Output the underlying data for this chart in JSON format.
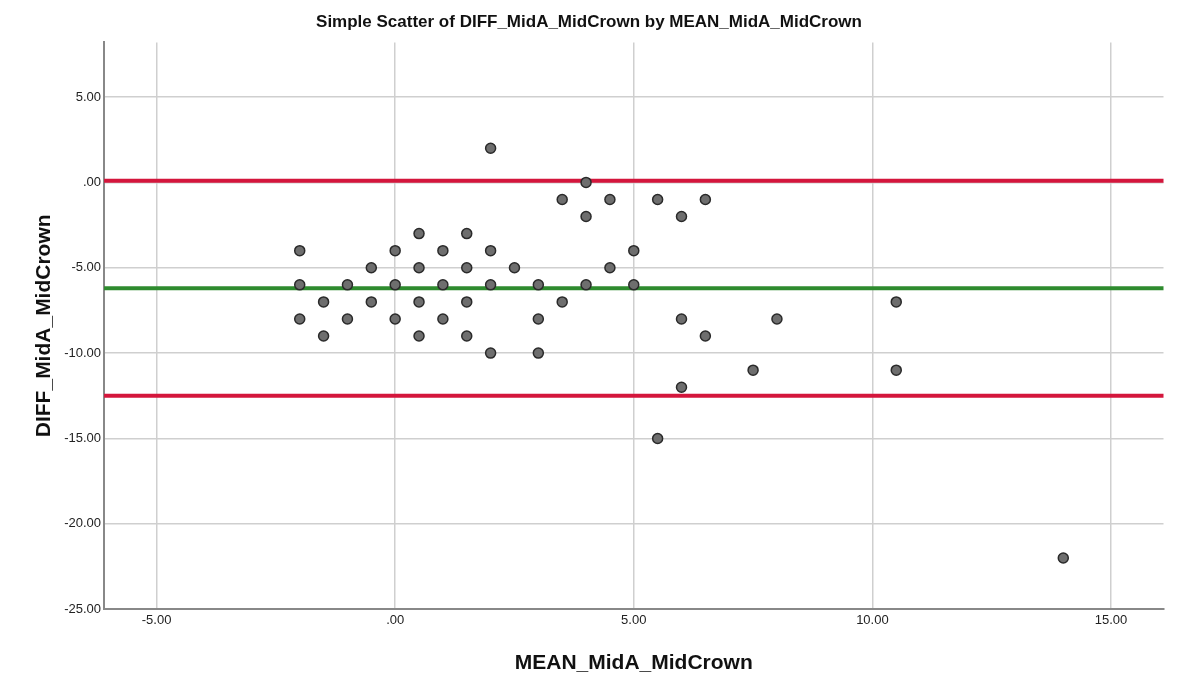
{
  "chart_data": {
    "type": "scatter",
    "title": "Simple Scatter of DIFF_MidA_MidCrown by MEAN_MidA_MidCrown",
    "xlabel": "MEAN_MidA_MidCrown",
    "ylabel": "DIFF_MidA_MidCrown",
    "x": [
      -2,
      -2,
      -2,
      -1.5,
      -1.5,
      -1,
      -1,
      -0.5,
      -0.5,
      0,
      0,
      0,
      0.5,
      0.5,
      0.5,
      0.5,
      1,
      1,
      1,
      1.5,
      1.5,
      1.5,
      1.5,
      2,
      2,
      2,
      2,
      2.5,
      3,
      3,
      3,
      3.5,
      3.5,
      4,
      4,
      4,
      4.5,
      4.5,
      5,
      5,
      5.5,
      5.5,
      6,
      6,
      6,
      6.5,
      6.5,
      7.5,
      8,
      10.5,
      10.5,
      14
    ],
    "series": [
      {
        "color": "#6e6e6e",
        "values": [
          -4,
          -6,
          -8,
          -7,
          -9,
          -6,
          -8,
          -5,
          -7,
          -4,
          -6,
          -8,
          -3,
          -5,
          -7,
          -9,
          -4,
          -6,
          -8,
          -3,
          -5,
          -7,
          -9,
          2,
          -4,
          -6,
          -10,
          -5,
          -6,
          -8,
          -10,
          -1,
          -7,
          0,
          -2,
          -6,
          -1,
          -5,
          -4,
          -6,
          -1,
          -15,
          -2,
          -8,
          -12,
          -1,
          -9,
          -11,
          -8,
          -7,
          -11,
          -22
        ]
      }
    ],
    "xlim": [
      -6.1,
      16.1
    ],
    "xticks": [
      {
        "value": -5,
        "label": "-5.00"
      },
      {
        "value": 0,
        "label": ".00"
      },
      {
        "value": 5,
        "label": "5.00"
      },
      {
        "value": 10,
        "label": "10.00"
      },
      {
        "value": 15,
        "label": "15.00"
      }
    ],
    "ylim": [
      -25,
      8.2
    ],
    "yticks": [
      {
        "value": -25,
        "label": "-25.00"
      },
      {
        "value": -20,
        "label": "-20.00"
      },
      {
        "value": -15,
        "label": "-15.00"
      },
      {
        "value": -10,
        "label": "-10.00"
      },
      {
        "value": -5,
        "label": "-5.00"
      },
      {
        "value": 0,
        "label": ".00"
      },
      {
        "value": 5,
        "label": "5.00"
      }
    ],
    "ref_lines": [
      {
        "axis": "y",
        "value": 0.1,
        "color": "#d4163c"
      },
      {
        "axis": "y",
        "value": -6.2,
        "color": "#2e8b2e"
      },
      {
        "axis": "y",
        "value": -12.5,
        "color": "#d4163c"
      }
    ],
    "grid": true,
    "legend": false,
    "marker": "circle"
  }
}
